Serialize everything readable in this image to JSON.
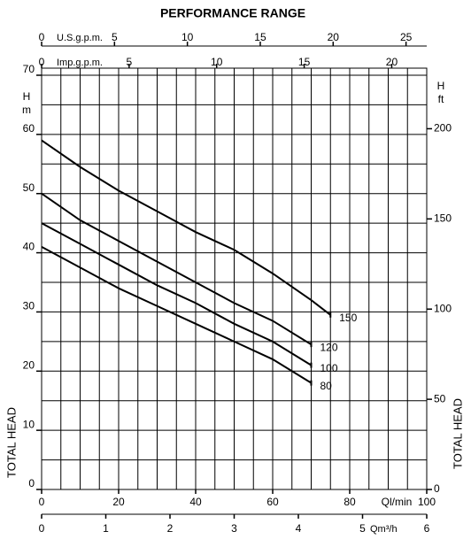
{
  "chart_data": {
    "type": "line",
    "title": "PERFORMANCE RANGE",
    "x": [
      0,
      10,
      20,
      30,
      40,
      50,
      60,
      70,
      75
    ],
    "series": [
      {
        "name": "150",
        "color": "#000000",
        "values": [
          59,
          54.5,
          50.5,
          47,
          43.5,
          40.5,
          36.5,
          32,
          29.5
        ]
      },
      {
        "name": "120",
        "color": "#000000",
        "values": [
          50,
          45.5,
          42,
          38.5,
          35,
          31.5,
          28.5,
          24.5,
          null
        ]
      },
      {
        "name": "100",
        "color": "#000000",
        "values": [
          45,
          41.5,
          38,
          34.5,
          31.5,
          28,
          25,
          21,
          null
        ]
      },
      {
        "name": "80",
        "color": "#000000",
        "values": [
          41,
          37.5,
          34,
          31,
          28,
          25,
          22,
          18,
          null
        ]
      }
    ],
    "xlabel": "Ql/min",
    "xlim": [
      0,
      100
    ],
    "xticks": [
      0,
      20,
      40,
      60,
      80,
      100
    ],
    "ylabel": "TOTAL HEAD",
    "yunit": [
      "H",
      "m"
    ],
    "ylim": [
      0,
      70
    ],
    "yticks": [
      0,
      10,
      20,
      30,
      40,
      50,
      60,
      70
    ],
    "y2label": "TOTAL HEAD",
    "y2unit": [
      "H",
      "ft"
    ],
    "y2lim": [
      0,
      229.66
    ],
    "y2ticks": [
      0,
      50,
      100,
      150,
      200
    ],
    "top_axes": [
      {
        "label": "U.S.g.p.m.",
        "lim": [
          0,
          26.42
        ],
        "ticks": [
          0,
          5,
          10,
          15,
          20,
          25
        ]
      },
      {
        "label": "Imp.g.p.m.",
        "lim": [
          0,
          22
        ],
        "ticks": [
          0,
          5,
          10,
          15,
          20
        ]
      }
    ],
    "bottom_axes": [
      {
        "label": "Qm³/h",
        "lim": [
          0,
          6
        ],
        "ticks": [
          0,
          1,
          2,
          3,
          4,
          5,
          6
        ]
      }
    ],
    "grid": true
  }
}
